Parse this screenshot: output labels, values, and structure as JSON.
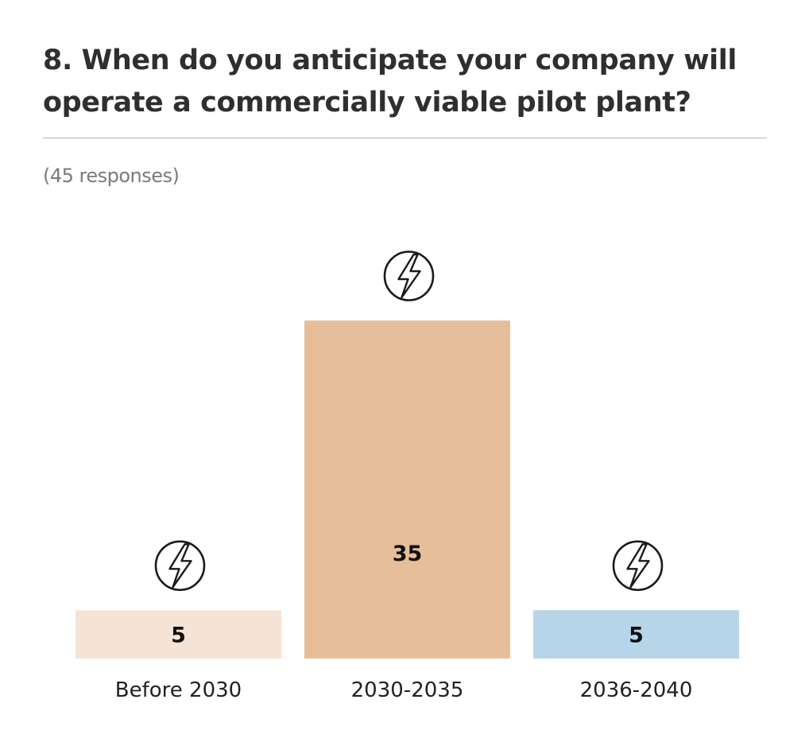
{
  "header": {
    "title": "8. When do you anticipate your company will operate a commercially viable pilot plant?",
    "subtitle": "(45 responses)"
  },
  "chart_data": {
    "type": "bar",
    "categories": [
      "Before 2030",
      "2030-2035",
      "2036-2040"
    ],
    "values": [
      5,
      35,
      5
    ],
    "colors": [
      "#f5e4d5",
      "#e6be9a",
      "#b6d5e8"
    ],
    "marker_icon": "lightning-bolt-icon",
    "xlabel": "",
    "ylabel": "",
    "ylim": [
      0,
      35
    ],
    "grid": false,
    "legend": "none"
  }
}
